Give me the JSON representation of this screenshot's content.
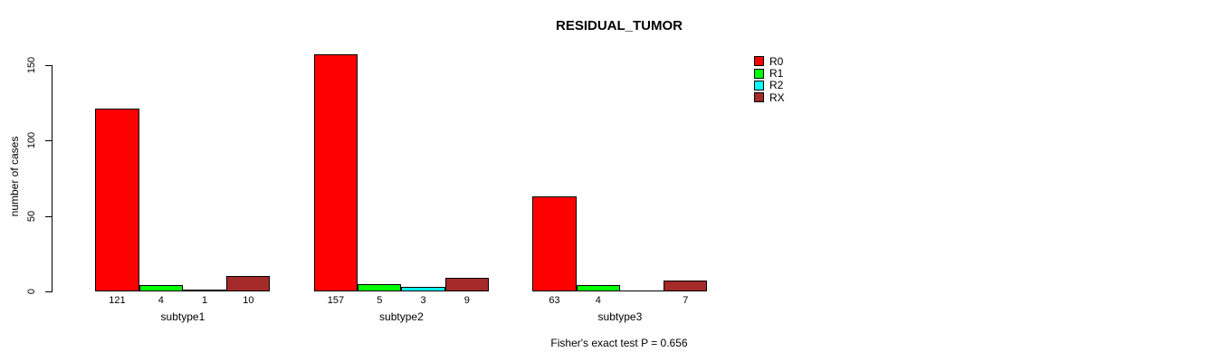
{
  "chart_data": {
    "type": "bar",
    "title": "RESIDUAL_TUMOR",
    "xlabel": "",
    "ylabel": "number of cases",
    "ylim": [
      0,
      150
    ],
    "yticks": [
      0,
      50,
      100,
      150
    ],
    "categories": [
      "subtype1",
      "subtype2",
      "subtype3"
    ],
    "series": [
      {
        "name": "R0",
        "color": "#FF0000",
        "values": [
          121,
          157,
          63
        ]
      },
      {
        "name": "R1",
        "color": "#00FF00",
        "values": [
          4,
          5,
          4
        ]
      },
      {
        "name": "R2",
        "color": "#00FFFF",
        "values": [
          1,
          3,
          0
        ]
      },
      {
        "name": "RX",
        "color": "#A52A2A",
        "values": [
          10,
          9,
          7
        ]
      }
    ],
    "bar_value_labels": true,
    "legend_position": "right",
    "grid": false,
    "annotation": "Fisher's exact test P = 0.656"
  }
}
